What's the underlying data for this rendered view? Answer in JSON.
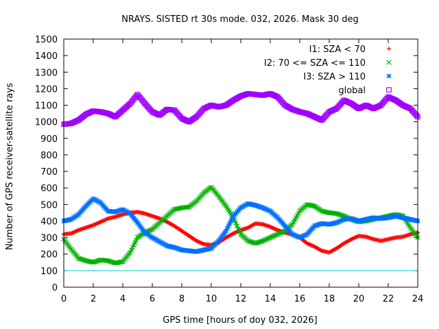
{
  "chart_data": {
    "type": "scatter",
    "title": "NRAYS. SISTED rt 30s mode. 032, 2026. Mask 30 deg",
    "xlabel": "GPS time [hours of doy 032, 2026]",
    "ylabel": "Number of GPS receiver-satellite rays",
    "xlim": [
      0,
      24
    ],
    "ylim": [
      0,
      1500
    ],
    "xticks": [
      "0",
      "2",
      "4",
      "6",
      "8",
      "10",
      "12",
      "14",
      "16",
      "18",
      "20",
      "22",
      "24"
    ],
    "yticks": [
      "0",
      "100",
      "200",
      "300",
      "400",
      "500",
      "600",
      "700",
      "800",
      "900",
      "1000",
      "1100",
      "1200",
      "1300",
      "1400",
      "1500"
    ],
    "legend_position": "top-right",
    "threshold": {
      "value": 100,
      "color": "#00d0d0"
    },
    "series": [
      {
        "name": "I1: SZA < 70",
        "marker": "+",
        "color": "#ff0000",
        "x": [
          0,
          0.5,
          1,
          1.5,
          2,
          2.5,
          3,
          3.5,
          4,
          4.5,
          5,
          5.5,
          6,
          6.5,
          7,
          7.5,
          8,
          8.5,
          9,
          9.5,
          10,
          10.5,
          11,
          11.5,
          12,
          12.5,
          13,
          13.5,
          14,
          14.5,
          15,
          15.5,
          16,
          16.5,
          17,
          17.5,
          18,
          18.5,
          19,
          19.5,
          20,
          20.5,
          21,
          21.5,
          22,
          22.5,
          23,
          23.5,
          24
        ],
        "values": [
          320,
          325,
          345,
          360,
          375,
          395,
          415,
          425,
          440,
          450,
          455,
          445,
          430,
          415,
          395,
          370,
          340,
          310,
          280,
          260,
          255,
          270,
          300,
          325,
          345,
          360,
          385,
          380,
          365,
          345,
          330,
          320,
          300,
          265,
          245,
          220,
          210,
          235,
          265,
          290,
          310,
          305,
          290,
          280,
          290,
          300,
          305,
          320,
          330
        ]
      },
      {
        "name": "I2: 70 <= SZA <= 110",
        "marker": "x",
        "color": "#00b000",
        "x": [
          0,
          0.5,
          1,
          1.5,
          2,
          2.5,
          3,
          3.5,
          4,
          4.5,
          5,
          5.5,
          6,
          6.5,
          7,
          7.5,
          8,
          8.5,
          9,
          9.5,
          10,
          10.5,
          11,
          11.5,
          12,
          12.5,
          13,
          13.5,
          14,
          14.5,
          15,
          15.5,
          16,
          16.5,
          17,
          17.5,
          18,
          18.5,
          19,
          19.5,
          20,
          20.5,
          21,
          21.5,
          22,
          22.5,
          23,
          23.5,
          24
        ],
        "values": [
          290,
          230,
          175,
          160,
          150,
          165,
          160,
          145,
          155,
          210,
          300,
          330,
          350,
          390,
          430,
          470,
          480,
          485,
          520,
          570,
          605,
          550,
          490,
          420,
          320,
          280,
          265,
          280,
          300,
          320,
          340,
          380,
          460,
          500,
          490,
          460,
          450,
          445,
          430,
          410,
          395,
          400,
          410,
          420,
          430,
          440,
          430,
          360,
          300
        ]
      },
      {
        "name": "I3: SZA > 110",
        "marker": "*",
        "color": "#0070ff",
        "x": [
          0,
          0.5,
          1,
          1.5,
          2,
          2.5,
          3,
          3.5,
          4,
          4.5,
          5,
          5.5,
          6,
          6.5,
          7,
          7.5,
          8,
          8.5,
          9,
          9.5,
          10,
          10.5,
          11,
          11.5,
          12,
          12.5,
          13,
          13.5,
          14,
          14.5,
          15,
          15.5,
          16,
          16.5,
          17,
          17.5,
          18,
          18.5,
          19,
          19.5,
          20,
          20.5,
          21,
          21.5,
          22,
          22.5,
          23,
          23.5,
          24
        ],
        "values": [
          400,
          410,
          440,
          490,
          535,
          510,
          460,
          455,
          470,
          445,
          390,
          330,
          300,
          275,
          250,
          240,
          225,
          220,
          215,
          225,
          235,
          280,
          340,
          430,
          480,
          505,
          495,
          480,
          460,
          420,
          370,
          320,
          300,
          320,
          370,
          385,
          380,
          390,
          410,
          415,
          400,
          410,
          420,
          415,
          420,
          430,
          420,
          410,
          400
        ]
      },
      {
        "name": "global",
        "marker": "square",
        "color": "#a000ff",
        "x": [
          0,
          0.5,
          1,
          1.5,
          2,
          2.5,
          3,
          3.5,
          4,
          4.5,
          5,
          5.5,
          6,
          6.5,
          7,
          7.5,
          8,
          8.5,
          9,
          9.5,
          10,
          10.5,
          11,
          11.5,
          12,
          12.5,
          13,
          13.5,
          14,
          14.5,
          15,
          15.5,
          16,
          16.5,
          17,
          17.5,
          18,
          18.5,
          19,
          19.5,
          20,
          20.5,
          21,
          21.5,
          22,
          22.5,
          23,
          23.5,
          24
        ],
        "values": [
          985,
          990,
          1010,
          1045,
          1065,
          1060,
          1050,
          1030,
          1070,
          1110,
          1165,
          1110,
          1060,
          1040,
          1075,
          1070,
          1020,
          1000,
          1030,
          1080,
          1100,
          1090,
          1100,
          1130,
          1155,
          1170,
          1165,
          1160,
          1170,
          1150,
          1100,
          1075,
          1060,
          1050,
          1030,
          1010,
          1060,
          1080,
          1130,
          1110,
          1080,
          1100,
          1080,
          1100,
          1150,
          1130,
          1100,
          1080,
          1030
        ]
      }
    ]
  }
}
